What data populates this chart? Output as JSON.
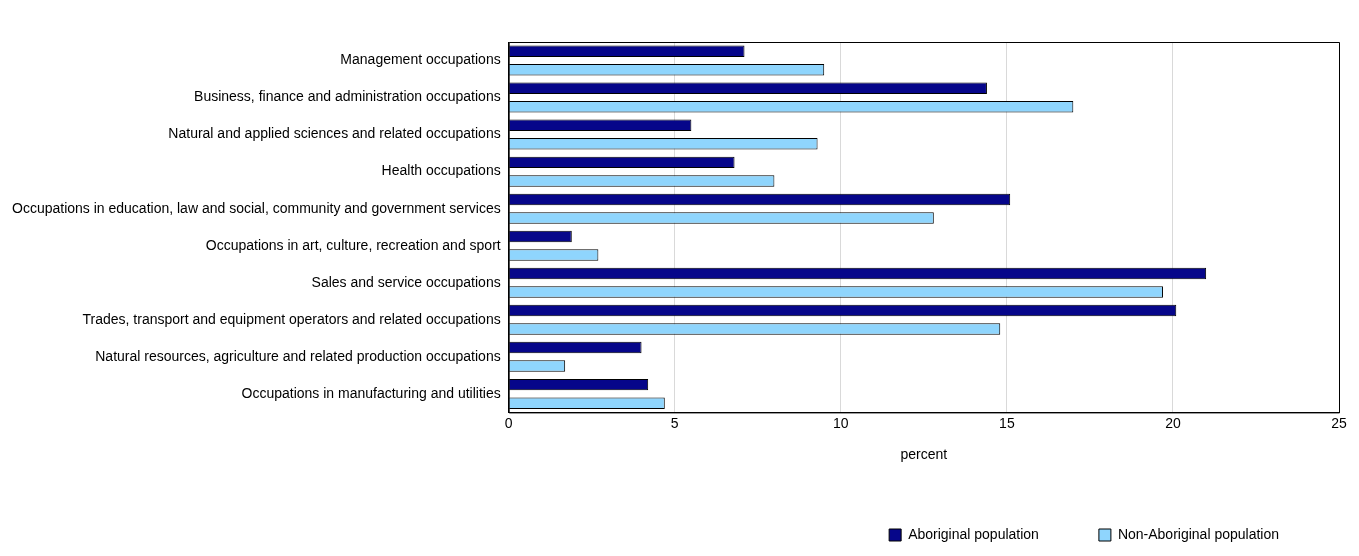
{
  "chart_data": {
    "type": "bar",
    "orientation": "horizontal",
    "xlabel": "percent",
    "categories": [
      "Management occupations",
      "Business, finance and administration occupations",
      "Natural and applied sciences and related occupations",
      "Health occupations",
      "Occupations in education, law and social, community and government services",
      "Occupations in art, culture, recreation and sport",
      "Sales and service occupations",
      "Trades, transport and equipment operators and related occupations",
      "Natural resources, agriculture and related production occupations",
      "Occupations in manufacturing and utilities"
    ],
    "series": [
      {
        "name": "Aboriginal population",
        "color": "#06068a",
        "values": [
          7.1,
          14.4,
          5.5,
          6.8,
          15.1,
          1.9,
          21.0,
          20.1,
          4.0,
          4.2
        ]
      },
      {
        "name": "Non-Aboriginal population",
        "color": "#8fd5fd",
        "values": [
          9.5,
          17.0,
          9.3,
          8.0,
          12.8,
          2.7,
          19.7,
          14.8,
          1.7,
          4.7
        ]
      }
    ],
    "xlim": [
      0,
      25
    ],
    "xticks": [
      0,
      5,
      10,
      15,
      20,
      25
    ],
    "grid": "x",
    "legend": "bottom right"
  }
}
